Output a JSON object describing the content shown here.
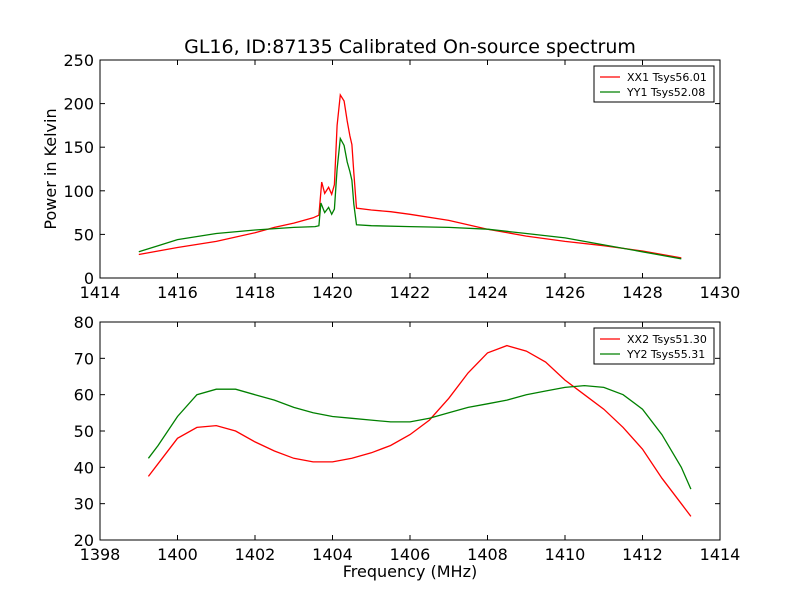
{
  "chart_data": [
    {
      "type": "line",
      "title": "GL16, ID:87135 Calibrated On-source spectrum",
      "xlabel": "",
      "ylabel": "Power in Kelvin",
      "xlim": [
        1414,
        1430
      ],
      "ylim": [
        0,
        250
      ],
      "xticks": [
        "1414",
        "1416",
        "1418",
        "1420",
        "1422",
        "1424",
        "1426",
        "1428",
        "1430"
      ],
      "yticks": [
        "0",
        "50",
        "100",
        "150",
        "200",
        "250"
      ],
      "legend_position": "top-right",
      "series": [
        {
          "name": "XX1 Tsys56.01",
          "color": "#ff0000",
          "points": [
            [
              1415,
              27
            ],
            [
              1416,
              35
            ],
            [
              1417,
              42
            ],
            [
              1418,
              52
            ],
            [
              1418.5,
              58
            ],
            [
              1419,
              63
            ],
            [
              1419.5,
              69
            ],
            [
              1419.65,
              72
            ],
            [
              1419.72,
              110
            ],
            [
              1419.8,
              97
            ],
            [
              1419.9,
              104
            ],
            [
              1419.98,
              96
            ],
            [
              1420.05,
              107
            ],
            [
              1420.12,
              175
            ],
            [
              1420.2,
              210
            ],
            [
              1420.3,
              203
            ],
            [
              1420.38,
              180
            ],
            [
              1420.45,
              163
            ],
            [
              1420.5,
              153
            ],
            [
              1420.55,
              121
            ],
            [
              1420.62,
              80
            ],
            [
              1421,
              78
            ],
            [
              1421.5,
              76
            ],
            [
              1422,
              73
            ],
            [
              1423,
              66
            ],
            [
              1424,
              56
            ],
            [
              1425,
              48
            ],
            [
              1426,
              42
            ],
            [
              1427,
              37
            ],
            [
              1428,
              31
            ],
            [
              1429,
              23
            ]
          ]
        },
        {
          "name": "YY1 Tsys52.08",
          "color": "#008000",
          "points": [
            [
              1415,
              30
            ],
            [
              1415.5,
              37
            ],
            [
              1416,
              44
            ],
            [
              1417,
              51
            ],
            [
              1418,
              55
            ],
            [
              1419,
              58
            ],
            [
              1419.55,
              59
            ],
            [
              1419.65,
              60
            ],
            [
              1419.7,
              86
            ],
            [
              1419.8,
              75
            ],
            [
              1419.9,
              81
            ],
            [
              1419.98,
              73
            ],
            [
              1420.05,
              79
            ],
            [
              1420.12,
              125
            ],
            [
              1420.2,
              160
            ],
            [
              1420.3,
              152
            ],
            [
              1420.38,
              133
            ],
            [
              1420.45,
              122
            ],
            [
              1420.5,
              112
            ],
            [
              1420.55,
              85
            ],
            [
              1420.62,
              61
            ],
            [
              1421,
              60
            ],
            [
              1422,
              59
            ],
            [
              1423,
              58
            ],
            [
              1424,
              56
            ],
            [
              1425,
              51
            ],
            [
              1426,
              46
            ],
            [
              1427,
              38
            ],
            [
              1428,
              30
            ],
            [
              1429,
              22
            ]
          ]
        }
      ]
    },
    {
      "type": "line",
      "title": "",
      "xlabel": "Frequency (MHz)",
      "ylabel": "",
      "xlim": [
        1398,
        1414
      ],
      "ylim": [
        20,
        80
      ],
      "xticks": [
        "1398",
        "1400",
        "1402",
        "1404",
        "1406",
        "1408",
        "1410",
        "1412",
        "1414"
      ],
      "yticks": [
        "20",
        "30",
        "40",
        "50",
        "60",
        "70",
        "80"
      ],
      "legend_position": "top-right",
      "series": [
        {
          "name": "XX2 Tsys51.30",
          "color": "#ff0000",
          "points": [
            [
              1399.25,
              37.5
            ],
            [
              1399.5,
              41
            ],
            [
              1400,
              48
            ],
            [
              1400.5,
              51
            ],
            [
              1401,
              51.5
            ],
            [
              1401.5,
              50
            ],
            [
              1402,
              47
            ],
            [
              1402.5,
              44.5
            ],
            [
              1403,
              42.5
            ],
            [
              1403.5,
              41.5
            ],
            [
              1404,
              41.5
            ],
            [
              1404.5,
              42.5
            ],
            [
              1405,
              44
            ],
            [
              1405.5,
              46
            ],
            [
              1406,
              49
            ],
            [
              1406.5,
              53
            ],
            [
              1407,
              59
            ],
            [
              1407.5,
              66
            ],
            [
              1408,
              71.5
            ],
            [
              1408.5,
              73.5
            ],
            [
              1409,
              72
            ],
            [
              1409.5,
              69
            ],
            [
              1410,
              64
            ],
            [
              1410.5,
              60
            ],
            [
              1411,
              56
            ],
            [
              1411.5,
              51
            ],
            [
              1412,
              45
            ],
            [
              1412.5,
              37
            ],
            [
              1413,
              30
            ],
            [
              1413.25,
              26.5
            ]
          ]
        },
        {
          "name": "YY2 Tsys55.31",
          "color": "#008000",
          "points": [
            [
              1399.25,
              42.5
            ],
            [
              1399.5,
              46
            ],
            [
              1400,
              54
            ],
            [
              1400.5,
              60
            ],
            [
              1401,
              61.5
            ],
            [
              1401.5,
              61.5
            ],
            [
              1402,
              60
            ],
            [
              1402.5,
              58.5
            ],
            [
              1403,
              56.5
            ],
            [
              1403.5,
              55
            ],
            [
              1404,
              54
            ],
            [
              1404.5,
              53.5
            ],
            [
              1405,
              53
            ],
            [
              1405.5,
              52.5
            ],
            [
              1406,
              52.5
            ],
            [
              1406.5,
              53.5
            ],
            [
              1407,
              55
            ],
            [
              1407.5,
              56.5
            ],
            [
              1408,
              57.5
            ],
            [
              1408.5,
              58.5
            ],
            [
              1409,
              60
            ],
            [
              1409.5,
              61
            ],
            [
              1410,
              62
            ],
            [
              1410.5,
              62.5
            ],
            [
              1411,
              62
            ],
            [
              1411.5,
              60
            ],
            [
              1412,
              56
            ],
            [
              1412.5,
              49
            ],
            [
              1413,
              40
            ],
            [
              1413.25,
              34
            ]
          ]
        }
      ]
    }
  ]
}
